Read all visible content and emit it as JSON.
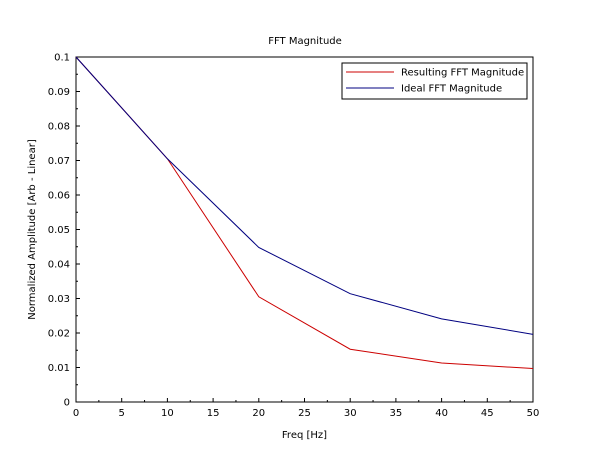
{
  "chart_data": {
    "type": "line",
    "title": "FFT Magnitude",
    "xlabel": "Freq [Hz]",
    "ylabel": "Normalized Amplitude [Arb - Linear]",
    "xlim": [
      0,
      50
    ],
    "ylim": [
      0,
      0.1
    ],
    "xticks": [
      0,
      5,
      10,
      15,
      20,
      25,
      30,
      35,
      40,
      45,
      50
    ],
    "xtick_labels": [
      "0",
      "5",
      "10",
      "15",
      "20",
      "25",
      "30",
      "35",
      "40",
      "45",
      "50"
    ],
    "yticks": [
      0,
      0.01,
      0.02,
      0.03,
      0.04,
      0.05,
      0.06,
      0.07,
      0.08,
      0.09,
      0.1
    ],
    "ytick_labels": [
      "0",
      "0.01",
      "0.02",
      "0.03",
      "0.04",
      "0.05",
      "0.06",
      "0.07",
      "0.08",
      "0.09",
      "0.1"
    ],
    "grid": false,
    "legend_position": "top-right",
    "series": [
      {
        "name": "Resulting FFT Magnitude",
        "color": "#cc0000",
        "x": [
          0,
          10,
          20,
          30,
          40,
          50
        ],
        "y": [
          0.1,
          0.0705,
          0.0305,
          0.0153,
          0.0113,
          0.0097
        ]
      },
      {
        "name": "Ideal FFT Magnitude",
        "color": "#000080",
        "x": [
          0,
          10,
          20,
          30,
          40,
          50
        ],
        "y": [
          0.1,
          0.0705,
          0.0448,
          0.0314,
          0.0241,
          0.0196
        ]
      }
    ]
  }
}
